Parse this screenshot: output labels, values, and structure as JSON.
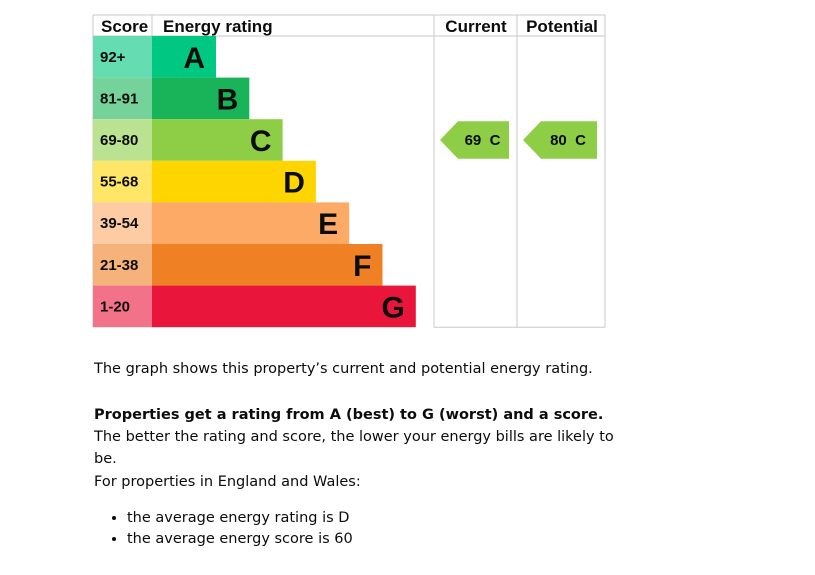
{
  "chart_data": {
    "type": "table",
    "headers": {
      "score": "Score",
      "rating": "Energy rating",
      "current": "Current",
      "potential": "Potential"
    },
    "bands": [
      {
        "score": "92+",
        "letter": "A",
        "color": "#00c781",
        "score_bg": "#66dcb3",
        "letter_color": "#0b0c0c"
      },
      {
        "score": "81-91",
        "letter": "B",
        "color": "#19b459",
        "score_bg": "#75d29b",
        "letter_color": "#0b0c0c"
      },
      {
        "score": "69-80",
        "letter": "C",
        "color": "#8dce46",
        "score_bg": "#bbe290",
        "letter_color": "#0b0c0c"
      },
      {
        "score": "55-68",
        "letter": "D",
        "color": "#ffd500",
        "score_bg": "#ffe666",
        "letter_color": "#0b0c0c"
      },
      {
        "score": "39-54",
        "letter": "E",
        "color": "#fcaa65",
        "score_bg": "#fdcca3",
        "letter_color": "#0b0c0c"
      },
      {
        "score": "21-38",
        "letter": "F",
        "color": "#ef8023",
        "score_bg": "#f5b37b",
        "letter_color": "#0b0c0c"
      },
      {
        "score": "1-20",
        "letter": "G",
        "color": "#e9153b",
        "score_bg": "#f27389",
        "letter_color": "#0b0c0c"
      }
    ],
    "current": {
      "value": 69,
      "letter": "C",
      "label": "69  C",
      "band_index": 2,
      "color": "#8dce46"
    },
    "potential": {
      "value": 80,
      "letter": "C",
      "label": "80  C",
      "band_index": 2,
      "color": "#8dce46"
    }
  },
  "text": {
    "intro": "The graph shows this property’s current and potential energy rating.",
    "ratings_bold": "Properties get a rating from A (best) to G (worst) and a score.",
    "ratings_rest": " The better the rating and score, the lower your energy bills are likely to be.",
    "england_wales": "For properties in England and Wales:",
    "bullets": [
      "the average energy rating is D",
      "the average energy score is 60"
    ]
  }
}
